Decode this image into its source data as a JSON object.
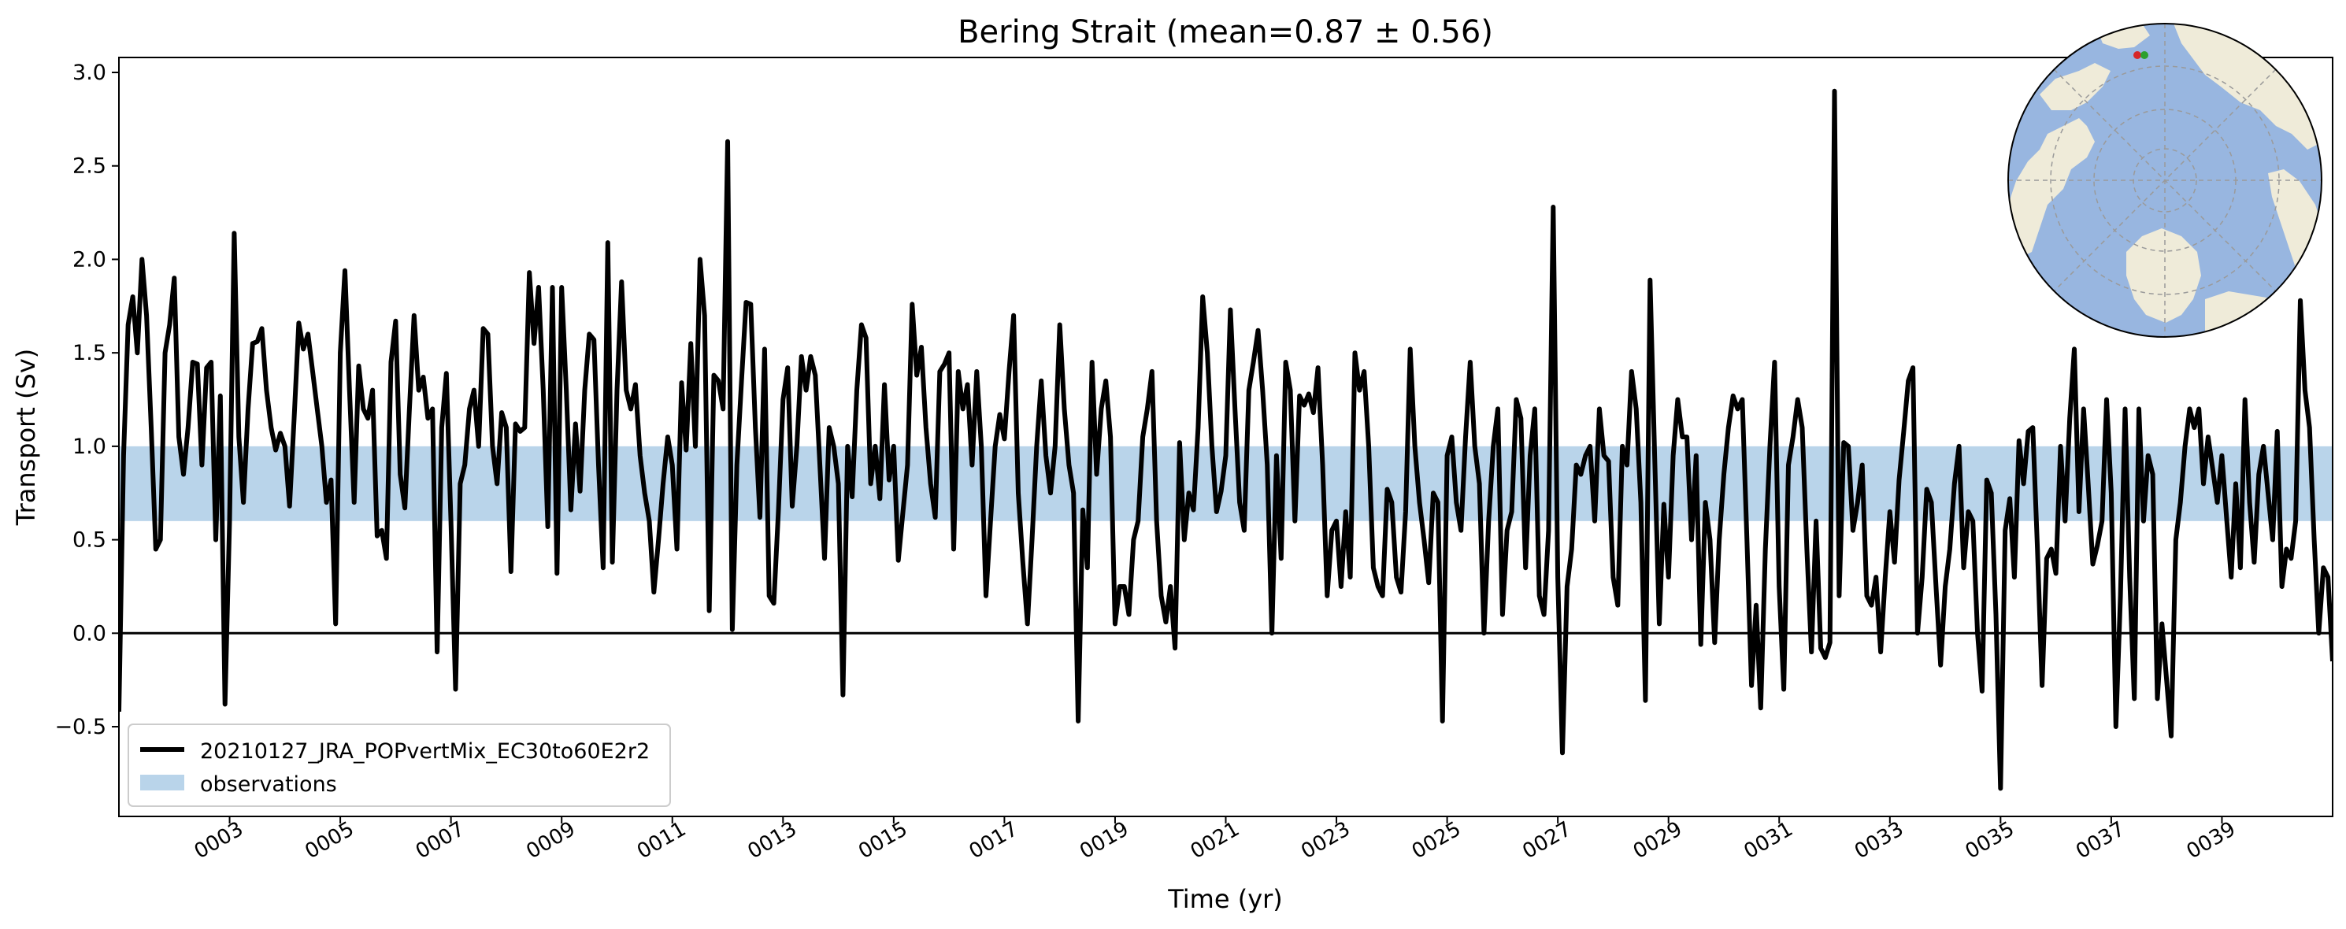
{
  "chart_data": {
    "type": "line",
    "title": "Bering Strait (mean=0.87 ± 0.56)",
    "xlabel": "Time (yr)",
    "ylabel": "Transport (Sv)",
    "xlim": [
      1,
      41
    ],
    "ylim": [
      -0.98,
      3.08
    ],
    "xticks": [
      3,
      5,
      7,
      9,
      11,
      13,
      15,
      17,
      19,
      21,
      23,
      25,
      27,
      29,
      31,
      33,
      35,
      37,
      39
    ],
    "xtick_labels": [
      "0003",
      "0005",
      "0007",
      "0009",
      "0011",
      "0013",
      "0015",
      "0017",
      "0019",
      "0021",
      "0023",
      "0025",
      "0027",
      "0029",
      "0031",
      "0033",
      "0035",
      "0037",
      "0039"
    ],
    "yticks": [
      -0.5,
      0.0,
      0.5,
      1.0,
      1.5,
      2.0,
      2.5,
      3.0
    ],
    "ytick_labels": [
      "−0.5",
      "0.0",
      "0.5",
      "1.0",
      "1.5",
      "2.0",
      "2.5",
      "3.0"
    ],
    "observations_band": [
      0.6,
      1.0
    ],
    "zero_line": 0.0,
    "grid": false,
    "legend_position": "lower-left",
    "legend": [
      {
        "label": "20210127_JRA_POPvertMix_EC30to60E2r2",
        "style": "line",
        "color": "#000000"
      },
      {
        "label": "observations",
        "style": "patch",
        "color": "#b9d4ea"
      }
    ],
    "series": [
      {
        "name": "20210127_JRA_POPvertMix_EC30to60E2r2",
        "color": "#000000",
        "x_start": 1.0,
        "x_step": 0.0833333,
        "values": [
          -0.42,
          0.95,
          1.65,
          1.8,
          1.5,
          2.0,
          1.7,
          1.1,
          0.45,
          0.5,
          1.5,
          1.65,
          1.9,
          1.05,
          0.85,
          1.1,
          1.45,
          1.44,
          0.9,
          1.42,
          1.45,
          0.5,
          1.27,
          -0.38,
          0.6,
          2.14,
          1.05,
          0.7,
          1.2,
          1.55,
          1.56,
          1.63,
          1.3,
          1.1,
          0.98,
          1.07,
          1.0,
          0.68,
          1.15,
          1.66,
          1.52,
          1.6,
          1.4,
          1.2,
          1.0,
          0.7,
          0.82,
          0.05,
          1.5,
          1.94,
          1.3,
          0.7,
          1.43,
          1.2,
          1.15,
          1.3,
          0.52,
          0.55,
          0.4,
          1.45,
          1.67,
          0.85,
          0.67,
          1.2,
          1.7,
          1.3,
          1.37,
          1.15,
          1.2,
          -0.1,
          1.1,
          1.39,
          0.6,
          -0.3,
          0.8,
          0.9,
          1.2,
          1.3,
          1.0,
          1.63,
          1.6,
          1.0,
          0.8,
          1.18,
          1.1,
          0.33,
          1.12,
          1.08,
          1.1,
          1.93,
          1.55,
          1.85,
          1.3,
          0.57,
          1.85,
          0.32,
          1.85,
          1.3,
          0.66,
          1.12,
          0.76,
          1.3,
          1.6,
          1.57,
          0.9,
          0.35,
          2.09,
          0.38,
          1.3,
          1.88,
          1.3,
          1.2,
          1.33,
          0.95,
          0.75,
          0.6,
          0.22,
          0.5,
          0.8,
          1.05,
          0.9,
          0.45,
          1.34,
          0.98,
          1.55,
          1.0,
          2.0,
          1.7,
          0.12,
          1.38,
          1.35,
          1.2,
          2.63,
          0.02,
          0.9,
          1.35,
          1.77,
          1.76,
          1.1,
          0.62,
          1.52,
          0.2,
          0.16,
          0.65,
          1.25,
          1.42,
          0.68,
          1.0,
          1.48,
          1.3,
          1.48,
          1.38,
          0.9,
          0.4,
          1.1,
          1.0,
          0.8,
          -0.33,
          1.0,
          0.73,
          1.3,
          1.65,
          1.58,
          0.8,
          1.0,
          0.72,
          1.33,
          0.82,
          1.0,
          0.39,
          0.65,
          0.9,
          1.76,
          1.38,
          1.53,
          1.1,
          0.8,
          0.62,
          1.4,
          1.44,
          1.5,
          0.45,
          1.4,
          1.2,
          1.33,
          0.9,
          1.4,
          1.0,
          0.2,
          0.6,
          1.0,
          1.17,
          1.04,
          1.4,
          1.7,
          0.75,
          0.38,
          0.05,
          0.5,
          1.0,
          1.35,
          0.95,
          0.75,
          1.0,
          1.65,
          1.2,
          0.9,
          0.75,
          -0.47,
          0.66,
          0.35,
          1.45,
          0.85,
          1.2,
          1.35,
          1.05,
          0.05,
          0.25,
          0.25,
          0.1,
          0.5,
          0.6,
          1.05,
          1.2,
          1.4,
          0.6,
          0.2,
          0.06,
          0.25,
          -0.08,
          1.02,
          0.5,
          0.75,
          0.66,
          1.1,
          1.8,
          1.5,
          1.0,
          0.65,
          0.76,
          0.95,
          1.73,
          1.2,
          0.7,
          0.55,
          1.3,
          1.45,
          1.62,
          1.3,
          0.9,
          0.0,
          0.95,
          0.4,
          1.45,
          1.3,
          0.6,
          1.27,
          1.22,
          1.28,
          1.18,
          1.42,
          0.9,
          0.2,
          0.55,
          0.6,
          0.25,
          0.65,
          0.3,
          1.5,
          1.3,
          1.4,
          1.0,
          0.35,
          0.25,
          0.2,
          0.77,
          0.7,
          0.3,
          0.22,
          0.65,
          1.52,
          1.0,
          0.7,
          0.5,
          0.27,
          0.75,
          0.7,
          -0.47,
          0.95,
          1.05,
          0.7,
          0.55,
          1.05,
          1.45,
          1.0,
          0.8,
          0.0,
          0.6,
          1.0,
          1.2,
          0.1,
          0.55,
          0.65,
          1.25,
          1.15,
          0.35,
          0.95,
          1.2,
          0.2,
          0.1,
          0.55,
          2.28,
          0.3,
          -0.64,
          0.25,
          0.45,
          0.9,
          0.85,
          0.95,
          1.0,
          0.6,
          1.2,
          0.95,
          0.92,
          0.3,
          0.15,
          1.0,
          0.9,
          1.4,
          1.2,
          0.7,
          -0.36,
          1.89,
          0.95,
          0.05,
          0.69,
          0.3,
          0.95,
          1.25,
          1.05,
          1.05,
          0.5,
          0.95,
          -0.06,
          0.7,
          0.5,
          -0.05,
          0.5,
          0.85,
          1.1,
          1.27,
          1.2,
          1.25,
          0.5,
          -0.28,
          0.15,
          -0.4,
          0.45,
          1.0,
          1.45,
          0.25,
          -0.3,
          0.9,
          1.05,
          1.25,
          1.1,
          0.45,
          -0.1,
          0.6,
          -0.08,
          -0.13,
          -0.05,
          2.9,
          0.2,
          1.02,
          1.0,
          0.55,
          0.7,
          0.9,
          0.2,
          0.15,
          0.3,
          -0.1,
          0.3,
          0.65,
          0.38,
          0.82,
          1.08,
          1.35,
          1.42,
          0.0,
          0.3,
          0.77,
          0.7,
          0.25,
          -0.17,
          0.25,
          0.45,
          0.8,
          1.0,
          0.35,
          0.65,
          0.6,
          0.0,
          -0.31,
          0.82,
          0.75,
          0.1,
          -0.83,
          0.55,
          0.72,
          0.3,
          1.03,
          0.8,
          1.08,
          1.1,
          0.45,
          -0.28,
          0.4,
          0.45,
          0.32,
          1.0,
          0.6,
          1.15,
          1.52,
          0.65,
          1.2,
          0.8,
          0.37,
          0.47,
          0.6,
          1.25,
          0.75,
          -0.5,
          0.2,
          1.2,
          0.3,
          -0.35,
          1.2,
          0.6,
          0.95,
          0.85,
          -0.35,
          0.05,
          -0.25,
          -0.55,
          0.5,
          0.7,
          1.0,
          1.2,
          1.1,
          1.2,
          0.8,
          1.05,
          0.88,
          0.7,
          0.95,
          0.62,
          0.3,
          0.8,
          0.35,
          1.25,
          0.7,
          0.38,
          0.85,
          1.0,
          0.75,
          0.5,
          1.08,
          0.25,
          0.45,
          0.4,
          0.6,
          1.78,
          1.3,
          1.1,
          0.5,
          0.0,
          0.35,
          0.3,
          -0.15
        ]
      }
    ],
    "inset_map": {
      "projection": "north-polar-stereographic",
      "ocean_color": "#98b6e0",
      "land_color": "#efebd9",
      "markers": [
        {
          "color": "#d62728"
        },
        {
          "color": "#2ca02c"
        }
      ]
    }
  }
}
